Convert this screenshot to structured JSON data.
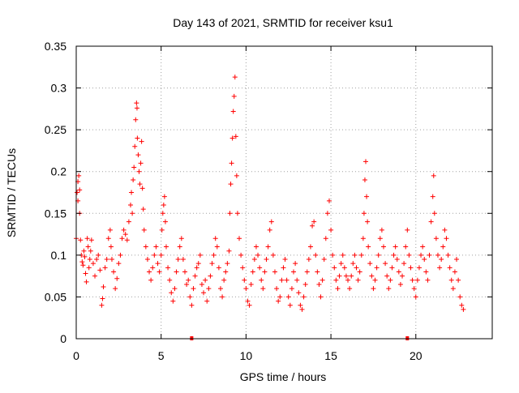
{
  "chart_data": {
    "type": "scatter",
    "title": "Day 143 of 2021, SRMTID for receiver ksu1",
    "xlabel": "GPS time / hours",
    "ylabel": "SRMTID / TECUs",
    "xlim": [
      0,
      24.5
    ],
    "ylim": [
      0,
      0.35
    ],
    "xticks": [
      0,
      5,
      10,
      15,
      20
    ],
    "yticks": [
      0,
      0.05,
      0.1,
      0.15,
      0.2,
      0.25,
      0.3,
      0.35
    ],
    "xtick_labels": [
      "0",
      "5",
      "10",
      "15",
      "20"
    ],
    "ytick_labels": [
      "0",
      "0.05",
      "0.1",
      "0.15",
      "0.2",
      "0.25",
      "0.3",
      "0.35"
    ],
    "grid": true,
    "legend": "none",
    "marker": "+",
    "color": "#ff0000",
    "series": [
      {
        "name": "SRMTID",
        "points": [
          [
            0.0,
            0.12
          ],
          [
            0.05,
            0.175
          ],
          [
            0.1,
            0.188
          ],
          [
            0.1,
            0.165
          ],
          [
            0.15,
            0.195
          ],
          [
            0.2,
            0.178
          ],
          [
            0.2,
            0.15
          ],
          [
            0.25,
            0.118
          ],
          [
            0.3,
            0.1
          ],
          [
            0.35,
            0.092
          ],
          [
            0.4,
            0.088
          ],
          [
            0.45,
            0.105
          ],
          [
            0.5,
            0.098
          ],
          [
            0.55,
            0.078
          ],
          [
            0.6,
            0.068
          ],
          [
            0.65,
            0.12
          ],
          [
            0.7,
            0.11
          ],
          [
            0.75,
            0.085
          ],
          [
            0.8,
            0.095
          ],
          [
            0.85,
            0.105
          ],
          [
            0.9,
            0.118
          ],
          [
            1.0,
            0.09
          ],
          [
            1.1,
            0.075
          ],
          [
            1.2,
            0.095
          ],
          [
            1.3,
            0.1
          ],
          [
            1.4,
            0.082
          ],
          [
            1.5,
            0.04
          ],
          [
            1.55,
            0.048
          ],
          [
            1.6,
            0.062
          ],
          [
            1.7,
            0.085
          ],
          [
            1.8,
            0.095
          ],
          [
            1.9,
            0.12
          ],
          [
            2.0,
            0.13
          ],
          [
            2.05,
            0.11
          ],
          [
            2.1,
            0.095
          ],
          [
            2.2,
            0.08
          ],
          [
            2.3,
            0.06
          ],
          [
            2.4,
            0.072
          ],
          [
            2.5,
            0.09
          ],
          [
            2.6,
            0.1
          ],
          [
            2.7,
            0.12
          ],
          [
            2.8,
            0.13
          ],
          [
            2.9,
            0.125
          ],
          [
            3.0,
            0.118
          ],
          [
            3.1,
            0.14
          ],
          [
            3.2,
            0.16
          ],
          [
            3.25,
            0.175
          ],
          [
            3.3,
            0.15
          ],
          [
            3.35,
            0.19
          ],
          [
            3.4,
            0.205
          ],
          [
            3.45,
            0.23
          ],
          [
            3.5,
            0.262
          ],
          [
            3.55,
            0.282
          ],
          [
            3.58,
            0.276
          ],
          [
            3.6,
            0.24
          ],
          [
            3.65,
            0.22
          ],
          [
            3.7,
            0.2
          ],
          [
            3.75,
            0.185
          ],
          [
            3.8,
            0.21
          ],
          [
            3.85,
            0.236
          ],
          [
            3.9,
            0.18
          ],
          [
            3.95,
            0.155
          ],
          [
            4.0,
            0.13
          ],
          [
            4.1,
            0.11
          ],
          [
            4.2,
            0.095
          ],
          [
            4.3,
            0.08
          ],
          [
            4.4,
            0.07
          ],
          [
            4.5,
            0.085
          ],
          [
            4.6,
            0.1
          ],
          [
            4.7,
            0.11
          ],
          [
            4.8,
            0.09
          ],
          [
            4.9,
            0.08
          ],
          [
            5.0,
            0.1
          ],
          [
            5.05,
            0.13
          ],
          [
            5.1,
            0.15
          ],
          [
            5.15,
            0.16
          ],
          [
            5.2,
            0.17
          ],
          [
            5.25,
            0.14
          ],
          [
            5.3,
            0.11
          ],
          [
            5.4,
            0.085
          ],
          [
            5.5,
            0.07
          ],
          [
            5.6,
            0.055
          ],
          [
            5.7,
            0.045
          ],
          [
            5.8,
            0.06
          ],
          [
            5.9,
            0.08
          ],
          [
            6.0,
            0.095
          ],
          [
            6.1,
            0.11
          ],
          [
            6.2,
            0.12
          ],
          [
            6.3,
            0.095
          ],
          [
            6.4,
            0.08
          ],
          [
            6.5,
            0.065
          ],
          [
            6.6,
            0.07
          ],
          [
            6.7,
            0.05
          ],
          [
            6.8,
            0.04
          ],
          [
            6.9,
            0.06
          ],
          [
            7.0,
            0.075
          ],
          [
            7.1,
            0.085
          ],
          [
            7.2,
            0.09
          ],
          [
            7.3,
            0.1
          ],
          [
            7.4,
            0.065
          ],
          [
            7.5,
            0.055
          ],
          [
            7.6,
            0.07
          ],
          [
            7.7,
            0.045
          ],
          [
            7.8,
            0.06
          ],
          [
            7.9,
            0.075
          ],
          [
            8.0,
            0.09
          ],
          [
            8.1,
            0.1
          ],
          [
            8.2,
            0.12
          ],
          [
            8.3,
            0.11
          ],
          [
            8.4,
            0.085
          ],
          [
            8.5,
            0.06
          ],
          [
            8.6,
            0.05
          ],
          [
            8.7,
            0.07
          ],
          [
            8.8,
            0.08
          ],
          [
            8.9,
            0.09
          ],
          [
            9.0,
            0.105
          ],
          [
            9.05,
            0.15
          ],
          [
            9.1,
            0.185
          ],
          [
            9.15,
            0.21
          ],
          [
            9.2,
            0.24
          ],
          [
            9.25,
            0.272
          ],
          [
            9.3,
            0.29
          ],
          [
            9.35,
            0.313
          ],
          [
            9.4,
            0.242
          ],
          [
            9.45,
            0.195
          ],
          [
            9.5,
            0.15
          ],
          [
            9.6,
            0.12
          ],
          [
            9.7,
            0.1
          ],
          [
            9.8,
            0.085
          ],
          [
            9.9,
            0.07
          ],
          [
            10.0,
            0.06
          ],
          [
            10.1,
            0.045
          ],
          [
            10.2,
            0.04
          ],
          [
            10.3,
            0.065
          ],
          [
            10.4,
            0.08
          ],
          [
            10.5,
            0.095
          ],
          [
            10.6,
            0.11
          ],
          [
            10.7,
            0.1
          ],
          [
            10.8,
            0.085
          ],
          [
            10.9,
            0.07
          ],
          [
            11.0,
            0.06
          ],
          [
            11.1,
            0.08
          ],
          [
            11.2,
            0.095
          ],
          [
            11.3,
            0.11
          ],
          [
            11.4,
            0.13
          ],
          [
            11.5,
            0.14
          ],
          [
            11.6,
            0.1
          ],
          [
            11.7,
            0.08
          ],
          [
            11.8,
            0.06
          ],
          [
            11.9,
            0.045
          ],
          [
            12.0,
            0.05
          ],
          [
            12.1,
            0.07
          ],
          [
            12.2,
            0.085
          ],
          [
            12.3,
            0.095
          ],
          [
            12.4,
            0.07
          ],
          [
            12.5,
            0.05
          ],
          [
            12.6,
            0.04
          ],
          [
            12.7,
            0.06
          ],
          [
            12.8,
            0.08
          ],
          [
            12.9,
            0.09
          ],
          [
            13.0,
            0.07
          ],
          [
            13.1,
            0.055
          ],
          [
            13.2,
            0.04
          ],
          [
            13.3,
            0.035
          ],
          [
            13.4,
            0.05
          ],
          [
            13.5,
            0.065
          ],
          [
            13.6,
            0.08
          ],
          [
            13.7,
            0.095
          ],
          [
            13.8,
            0.11
          ],
          [
            13.9,
            0.135
          ],
          [
            14.0,
            0.14
          ],
          [
            14.1,
            0.1
          ],
          [
            14.2,
            0.08
          ],
          [
            14.3,
            0.065
          ],
          [
            14.4,
            0.05
          ],
          [
            14.5,
            0.07
          ],
          [
            14.6,
            0.095
          ],
          [
            14.7,
            0.12
          ],
          [
            14.8,
            0.15
          ],
          [
            14.9,
            0.165
          ],
          [
            15.0,
            0.13
          ],
          [
            15.1,
            0.1
          ],
          [
            15.2,
            0.085
          ],
          [
            15.3,
            0.07
          ],
          [
            15.4,
            0.06
          ],
          [
            15.5,
            0.075
          ],
          [
            15.6,
            0.09
          ],
          [
            15.7,
            0.1
          ],
          [
            15.8,
            0.085
          ],
          [
            15.9,
            0.075
          ],
          [
            16.0,
            0.07
          ],
          [
            16.1,
            0.06
          ],
          [
            16.2,
            0.075
          ],
          [
            16.3,
            0.09
          ],
          [
            16.4,
            0.1
          ],
          [
            16.5,
            0.085
          ],
          [
            16.6,
            0.07
          ],
          [
            16.7,
            0.08
          ],
          [
            16.8,
            0.1
          ],
          [
            16.9,
            0.12
          ],
          [
            16.95,
            0.15
          ],
          [
            17.0,
            0.19
          ],
          [
            17.05,
            0.212
          ],
          [
            17.1,
            0.17
          ],
          [
            17.15,
            0.14
          ],
          [
            17.2,
            0.11
          ],
          [
            17.3,
            0.09
          ],
          [
            17.4,
            0.075
          ],
          [
            17.5,
            0.06
          ],
          [
            17.6,
            0.07
          ],
          [
            17.7,
            0.085
          ],
          [
            17.8,
            0.1
          ],
          [
            17.9,
            0.12
          ],
          [
            18.0,
            0.13
          ],
          [
            18.1,
            0.11
          ],
          [
            18.2,
            0.09
          ],
          [
            18.3,
            0.075
          ],
          [
            18.4,
            0.06
          ],
          [
            18.5,
            0.07
          ],
          [
            18.6,
            0.085
          ],
          [
            18.7,
            0.1
          ],
          [
            18.8,
            0.11
          ],
          [
            18.9,
            0.095
          ],
          [
            19.0,
            0.08
          ],
          [
            19.1,
            0.065
          ],
          [
            19.2,
            0.075
          ],
          [
            19.3,
            0.09
          ],
          [
            19.4,
            0.11
          ],
          [
            19.5,
            0.13
          ],
          [
            19.6,
            0.1
          ],
          [
            19.7,
            0.085
          ],
          [
            19.8,
            0.07
          ],
          [
            19.9,
            0.06
          ],
          [
            20.0,
            0.05
          ],
          [
            20.1,
            0.07
          ],
          [
            20.2,
            0.085
          ],
          [
            20.3,
            0.1
          ],
          [
            20.4,
            0.11
          ],
          [
            20.5,
            0.095
          ],
          [
            20.6,
            0.08
          ],
          [
            20.7,
            0.07
          ],
          [
            20.8,
            0.1
          ],
          [
            20.9,
            0.14
          ],
          [
            21.0,
            0.17
          ],
          [
            21.05,
            0.195
          ],
          [
            21.1,
            0.15
          ],
          [
            21.2,
            0.12
          ],
          [
            21.3,
            0.1
          ],
          [
            21.4,
            0.085
          ],
          [
            21.5,
            0.095
          ],
          [
            21.6,
            0.11
          ],
          [
            21.7,
            0.13
          ],
          [
            21.8,
            0.12
          ],
          [
            21.9,
            0.1
          ],
          [
            22.0,
            0.085
          ],
          [
            22.1,
            0.07
          ],
          [
            22.2,
            0.06
          ],
          [
            22.3,
            0.08
          ],
          [
            22.4,
            0.095
          ],
          [
            22.5,
            0.07
          ],
          [
            22.6,
            0.05
          ],
          [
            22.7,
            0.04
          ],
          [
            22.8,
            0.035
          ]
        ]
      }
    ],
    "zero_markers": [
      6.8,
      19.5
    ]
  }
}
